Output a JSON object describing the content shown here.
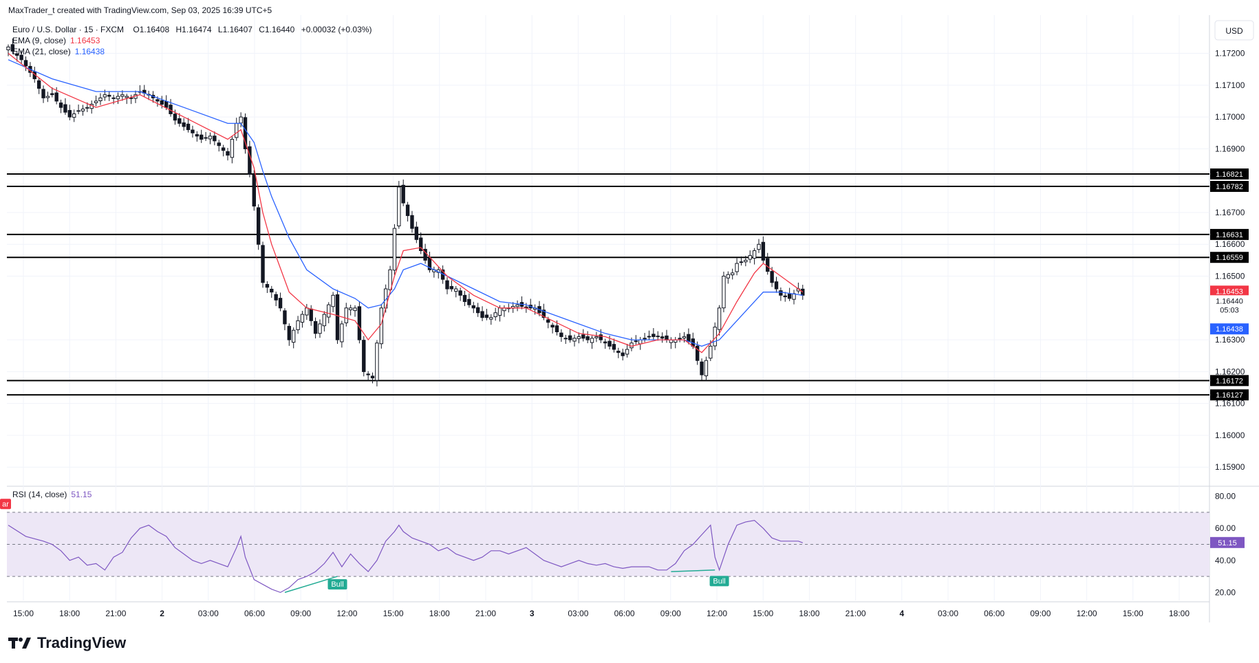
{
  "header": {
    "credit": "MaxTrader_t created with TradingView.com, Sep 03, 2025 16:39 UTC+5"
  },
  "legend": {
    "symbol": "Euro / U.S. Dollar · 15 · FXCM",
    "open_label": "O",
    "open": "1.16408",
    "high_label": "H",
    "high": "1.16474",
    "low_label": "L",
    "low": "1.16407",
    "close_label": "C",
    "close": "1.16440",
    "change": "+0.00032 (+0.03%)",
    "ema1_label": "EMA (9, close)",
    "ema1_value": "1.16453",
    "ema2_label": "EMA (21, close)",
    "ema2_value": "1.16438"
  },
  "rsi_legend": {
    "label": "RSI (14, close)",
    "value": "51.15"
  },
  "currency": "USD",
  "brand": "TradingView",
  "colors": {
    "ema_fast": "#f23645",
    "ema_slow": "#2962ff",
    "rsi": "#7e57c2",
    "rsi_band": "#ede7f6",
    "bull_label": "#22ab94",
    "bear_label": "#f23645",
    "candle": "#131722",
    "grid": "#f0f3fa"
  },
  "chart_data": [
    {
      "type": "candlestick",
      "title": "Euro / U.S. Dollar · 15 · FXCM",
      "ylim": [
        1.1584,
        1.1732
      ],
      "y_ticks": [
        "1.17200",
        "1.17100",
        "1.17000",
        "1.16900",
        "1.16700",
        "1.16600",
        "1.16500",
        "1.16300",
        "1.16200",
        "1.16100",
        "1.16000",
        "1.15900"
      ],
      "x_ticks": [
        "15:00",
        "18:00",
        "21:00",
        "2",
        "03:00",
        "06:00",
        "09:00",
        "12:00",
        "15:00",
        "18:00",
        "21:00",
        "3",
        "03:00",
        "06:00",
        "09:00",
        "12:00",
        "15:00",
        "18:00",
        "21:00",
        "4",
        "03:00",
        "06:00",
        "09:00",
        "12:00",
        "15:00",
        "18:00"
      ],
      "bold_x_ticks": [
        "2",
        "3",
        "4"
      ],
      "horizontal_levels": [
        {
          "value": 1.16821,
          "label": "1.16821"
        },
        {
          "value": 1.16782,
          "label": "1.16782"
        },
        {
          "value": 1.16631,
          "label": "1.16631"
        },
        {
          "value": 1.16559,
          "label": "1.16559"
        },
        {
          "value": 1.16172,
          "label": "1.16172"
        },
        {
          "value": 1.16127,
          "label": "1.16127"
        }
      ],
      "price_tags": [
        {
          "value": 1.16453,
          "label": "1.16453",
          "color": "#f23645"
        },
        {
          "value": 1.1644,
          "label": "1.16440",
          "sublabel": "05:03",
          "color": "#ffffff"
        },
        {
          "value": 1.16438,
          "label": "1.16438",
          "color": "#2962ff"
        }
      ],
      "close_path": [
        [
          0,
          1.1722
        ],
        [
          3,
          1.1718
        ],
        [
          6,
          1.1712
        ],
        [
          8,
          1.1706
        ],
        [
          10,
          1.1707
        ],
        [
          12,
          1.1703
        ],
        [
          14,
          1.17
        ],
        [
          16,
          1.1702
        ],
        [
          18,
          1.1703
        ],
        [
          20,
          1.1705
        ],
        [
          22,
          1.1707
        ],
        [
          24,
          1.1706
        ],
        [
          26,
          1.1707
        ],
        [
          28,
          1.1706
        ],
        [
          30,
          1.1708
        ],
        [
          32,
          1.1707
        ],
        [
          34,
          1.1705
        ],
        [
          36,
          1.1703
        ],
        [
          38,
          1.1699
        ],
        [
          40,
          1.1697
        ],
        [
          42,
          1.1695
        ],
        [
          44,
          1.1693
        ],
        [
          46,
          1.1694
        ],
        [
          48,
          1.1691
        ],
        [
          50,
          1.1688
        ],
        [
          52,
          1.1698
        ],
        [
          53,
          1.17
        ],
        [
          54,
          1.169
        ],
        [
          55,
          1.1682
        ],
        [
          56,
          1.1672
        ],
        [
          57,
          1.166
        ],
        [
          58,
          1.1648
        ],
        [
          60,
          1.1645
        ],
        [
          62,
          1.164
        ],
        [
          64,
          1.163
        ],
        [
          66,
          1.1636
        ],
        [
          68,
          1.164
        ],
        [
          70,
          1.1632
        ],
        [
          72,
          1.1638
        ],
        [
          74,
          1.1644
        ],
        [
          75,
          1.163
        ],
        [
          77,
          1.164
        ],
        [
          79,
          1.164
        ],
        [
          81,
          1.162
        ],
        [
          83,
          1.1618
        ],
        [
          85,
          1.164
        ],
        [
          87,
          1.1652
        ],
        [
          88,
          1.1665
        ],
        [
          89,
          1.1678
        ],
        [
          90,
          1.1673
        ],
        [
          92,
          1.1665
        ],
        [
          94,
          1.1658
        ],
        [
          96,
          1.1652
        ],
        [
          98,
          1.1652
        ],
        [
          100,
          1.1646
        ],
        [
          102,
          1.1646
        ],
        [
          104,
          1.1642
        ],
        [
          106,
          1.164
        ],
        [
          108,
          1.1637
        ],
        [
          110,
          1.1637
        ],
        [
          112,
          1.164
        ],
        [
          114,
          1.164
        ],
        [
          116,
          1.1641
        ],
        [
          118,
          1.164
        ],
        [
          120,
          1.164
        ],
        [
          122,
          1.1637
        ],
        [
          124,
          1.1634
        ],
        [
          126,
          1.1631
        ],
        [
          128,
          1.163
        ],
        [
          130,
          1.1631
        ],
        [
          132,
          1.163
        ],
        [
          134,
          1.1631
        ],
        [
          136,
          1.1629
        ],
        [
          138,
          1.1627
        ],
        [
          140,
          1.1625
        ],
        [
          142,
          1.1629
        ],
        [
          144,
          1.163
        ],
        [
          146,
          1.1631
        ],
        [
          148,
          1.1631
        ],
        [
          150,
          1.163
        ],
        [
          152,
          1.163
        ],
        [
          154,
          1.1631
        ],
        [
          156,
          1.1628
        ],
        [
          158,
          1.1619
        ],
        [
          160,
          1.1628
        ],
        [
          162,
          1.164
        ],
        [
          163,
          1.165
        ],
        [
          165,
          1.1651
        ],
        [
          166,
          1.1654
        ],
        [
          168,
          1.1655
        ],
        [
          170,
          1.1658
        ],
        [
          171,
          1.166
        ],
        [
          172,
          1.1655
        ],
        [
          174,
          1.1648
        ],
        [
          176,
          1.1644
        ],
        [
          178,
          1.1643
        ],
        [
          180,
          1.1646
        ],
        [
          181,
          1.1644
        ]
      ],
      "ema_fast_path": [
        [
          0,
          1.172
        ],
        [
          10,
          1.1709
        ],
        [
          20,
          1.1703
        ],
        [
          30,
          1.1707
        ],
        [
          40,
          1.17
        ],
        [
          50,
          1.1693
        ],
        [
          53,
          1.1696
        ],
        [
          56,
          1.1684
        ],
        [
          58,
          1.167
        ],
        [
          60,
          1.166
        ],
        [
          64,
          1.1645
        ],
        [
          68,
          1.164
        ],
        [
          74,
          1.1638
        ],
        [
          79,
          1.1636
        ],
        [
          82,
          1.163
        ],
        [
          85,
          1.1635
        ],
        [
          88,
          1.165
        ],
        [
          90,
          1.1658
        ],
        [
          94,
          1.1659
        ],
        [
          100,
          1.165
        ],
        [
          106,
          1.1644
        ],
        [
          112,
          1.164
        ],
        [
          118,
          1.164
        ],
        [
          124,
          1.1636
        ],
        [
          130,
          1.1632
        ],
        [
          136,
          1.1631
        ],
        [
          142,
          1.1628
        ],
        [
          148,
          1.163
        ],
        [
          154,
          1.163
        ],
        [
          158,
          1.1626
        ],
        [
          162,
          1.1632
        ],
        [
          166,
          1.1642
        ],
        [
          170,
          1.1651
        ],
        [
          172,
          1.1654
        ],
        [
          176,
          1.165
        ],
        [
          181,
          1.1645
        ]
      ],
      "ema_slow_path": [
        [
          0,
          1.1718
        ],
        [
          10,
          1.1712
        ],
        [
          20,
          1.1708
        ],
        [
          30,
          1.1708
        ],
        [
          40,
          1.1703
        ],
        [
          50,
          1.1698
        ],
        [
          53,
          1.1698
        ],
        [
          56,
          1.1692
        ],
        [
          58,
          1.1683
        ],
        [
          60,
          1.1675
        ],
        [
          64,
          1.1662
        ],
        [
          68,
          1.1652
        ],
        [
          74,
          1.1646
        ],
        [
          79,
          1.1643
        ],
        [
          82,
          1.164
        ],
        [
          85,
          1.1641
        ],
        [
          88,
          1.1646
        ],
        [
          90,
          1.1652
        ],
        [
          94,
          1.1654
        ],
        [
          100,
          1.165
        ],
        [
          106,
          1.1646
        ],
        [
          112,
          1.1642
        ],
        [
          118,
          1.1641
        ],
        [
          124,
          1.1638
        ],
        [
          130,
          1.1635
        ],
        [
          136,
          1.1632
        ],
        [
          142,
          1.163
        ],
        [
          148,
          1.163
        ],
        [
          154,
          1.163
        ],
        [
          158,
          1.1628
        ],
        [
          162,
          1.163
        ],
        [
          166,
          1.1636
        ],
        [
          170,
          1.1642
        ],
        [
          172,
          1.1645
        ],
        [
          176,
          1.1645
        ],
        [
          181,
          1.1644
        ]
      ]
    },
    {
      "type": "line",
      "title": "RSI (14, close)",
      "ylim": [
        15,
        85
      ],
      "y_ticks": [
        "80.00",
        "60.00",
        "40.00",
        "20.00"
      ],
      "bands": [
        70,
        50,
        30
      ],
      "current_value": "51.15",
      "markers": [
        {
          "label": "Bull",
          "x": 75,
          "value": 30
        },
        {
          "label": "Bull",
          "x": 162,
          "value": 32
        },
        {
          "label": "ar",
          "x": 0,
          "value": 75
        }
      ],
      "divergence_lines": [
        {
          "from": [
            63,
            20
          ],
          "to": [
            75,
            30
          ]
        },
        {
          "from": [
            151,
            33
          ],
          "to": [
            161,
            34
          ]
        }
      ],
      "rsi_path": [
        [
          0,
          62
        ],
        [
          4,
          55
        ],
        [
          8,
          52
        ],
        [
          10,
          50
        ],
        [
          12,
          46
        ],
        [
          14,
          40
        ],
        [
          16,
          42
        ],
        [
          18,
          37
        ],
        [
          20,
          38
        ],
        [
          22,
          34
        ],
        [
          24,
          42
        ],
        [
          26,
          45
        ],
        [
          28,
          54
        ],
        [
          30,
          60
        ],
        [
          32,
          62
        ],
        [
          34,
          58
        ],
        [
          36,
          55
        ],
        [
          38,
          48
        ],
        [
          40,
          44
        ],
        [
          42,
          40
        ],
        [
          44,
          38
        ],
        [
          46,
          40
        ],
        [
          48,
          38
        ],
        [
          50,
          36
        ],
        [
          52,
          48
        ],
        [
          53,
          55
        ],
        [
          54,
          42
        ],
        [
          55,
          35
        ],
        [
          56,
          28
        ],
        [
          58,
          25
        ],
        [
          60,
          22
        ],
        [
          62,
          20
        ],
        [
          64,
          23
        ],
        [
          66,
          28
        ],
        [
          68,
          30
        ],
        [
          70,
          33
        ],
        [
          72,
          38
        ],
        [
          74,
          45
        ],
        [
          76,
          36
        ],
        [
          78,
          44
        ],
        [
          80,
          38
        ],
        [
          82,
          33
        ],
        [
          84,
          40
        ],
        [
          86,
          52
        ],
        [
          88,
          58
        ],
        [
          89,
          62
        ],
        [
          90,
          58
        ],
        [
          92,
          54
        ],
        [
          94,
          52
        ],
        [
          96,
          50
        ],
        [
          98,
          46
        ],
        [
          100,
          48
        ],
        [
          102,
          44
        ],
        [
          104,
          42
        ],
        [
          106,
          40
        ],
        [
          108,
          42
        ],
        [
          110,
          46
        ],
        [
          112,
          46
        ],
        [
          114,
          44
        ],
        [
          116,
          46
        ],
        [
          118,
          48
        ],
        [
          120,
          44
        ],
        [
          122,
          40
        ],
        [
          124,
          38
        ],
        [
          126,
          36
        ],
        [
          128,
          38
        ],
        [
          130,
          40
        ],
        [
          132,
          38
        ],
        [
          134,
          37
        ],
        [
          136,
          38
        ],
        [
          138,
          36
        ],
        [
          140,
          35
        ],
        [
          142,
          36
        ],
        [
          144,
          36
        ],
        [
          146,
          36
        ],
        [
          148,
          34
        ],
        [
          150,
          34
        ],
        [
          152,
          38
        ],
        [
          154,
          46
        ],
        [
          156,
          50
        ],
        [
          158,
          56
        ],
        [
          160,
          62
        ],
        [
          161,
          42
        ],
        [
          162,
          34
        ],
        [
          164,
          50
        ],
        [
          166,
          62
        ],
        [
          168,
          64
        ],
        [
          170,
          65
        ],
        [
          172,
          60
        ],
        [
          174,
          54
        ],
        [
          176,
          52
        ],
        [
          178,
          52
        ],
        [
          180,
          52
        ],
        [
          181,
          51
        ]
      ]
    }
  ]
}
